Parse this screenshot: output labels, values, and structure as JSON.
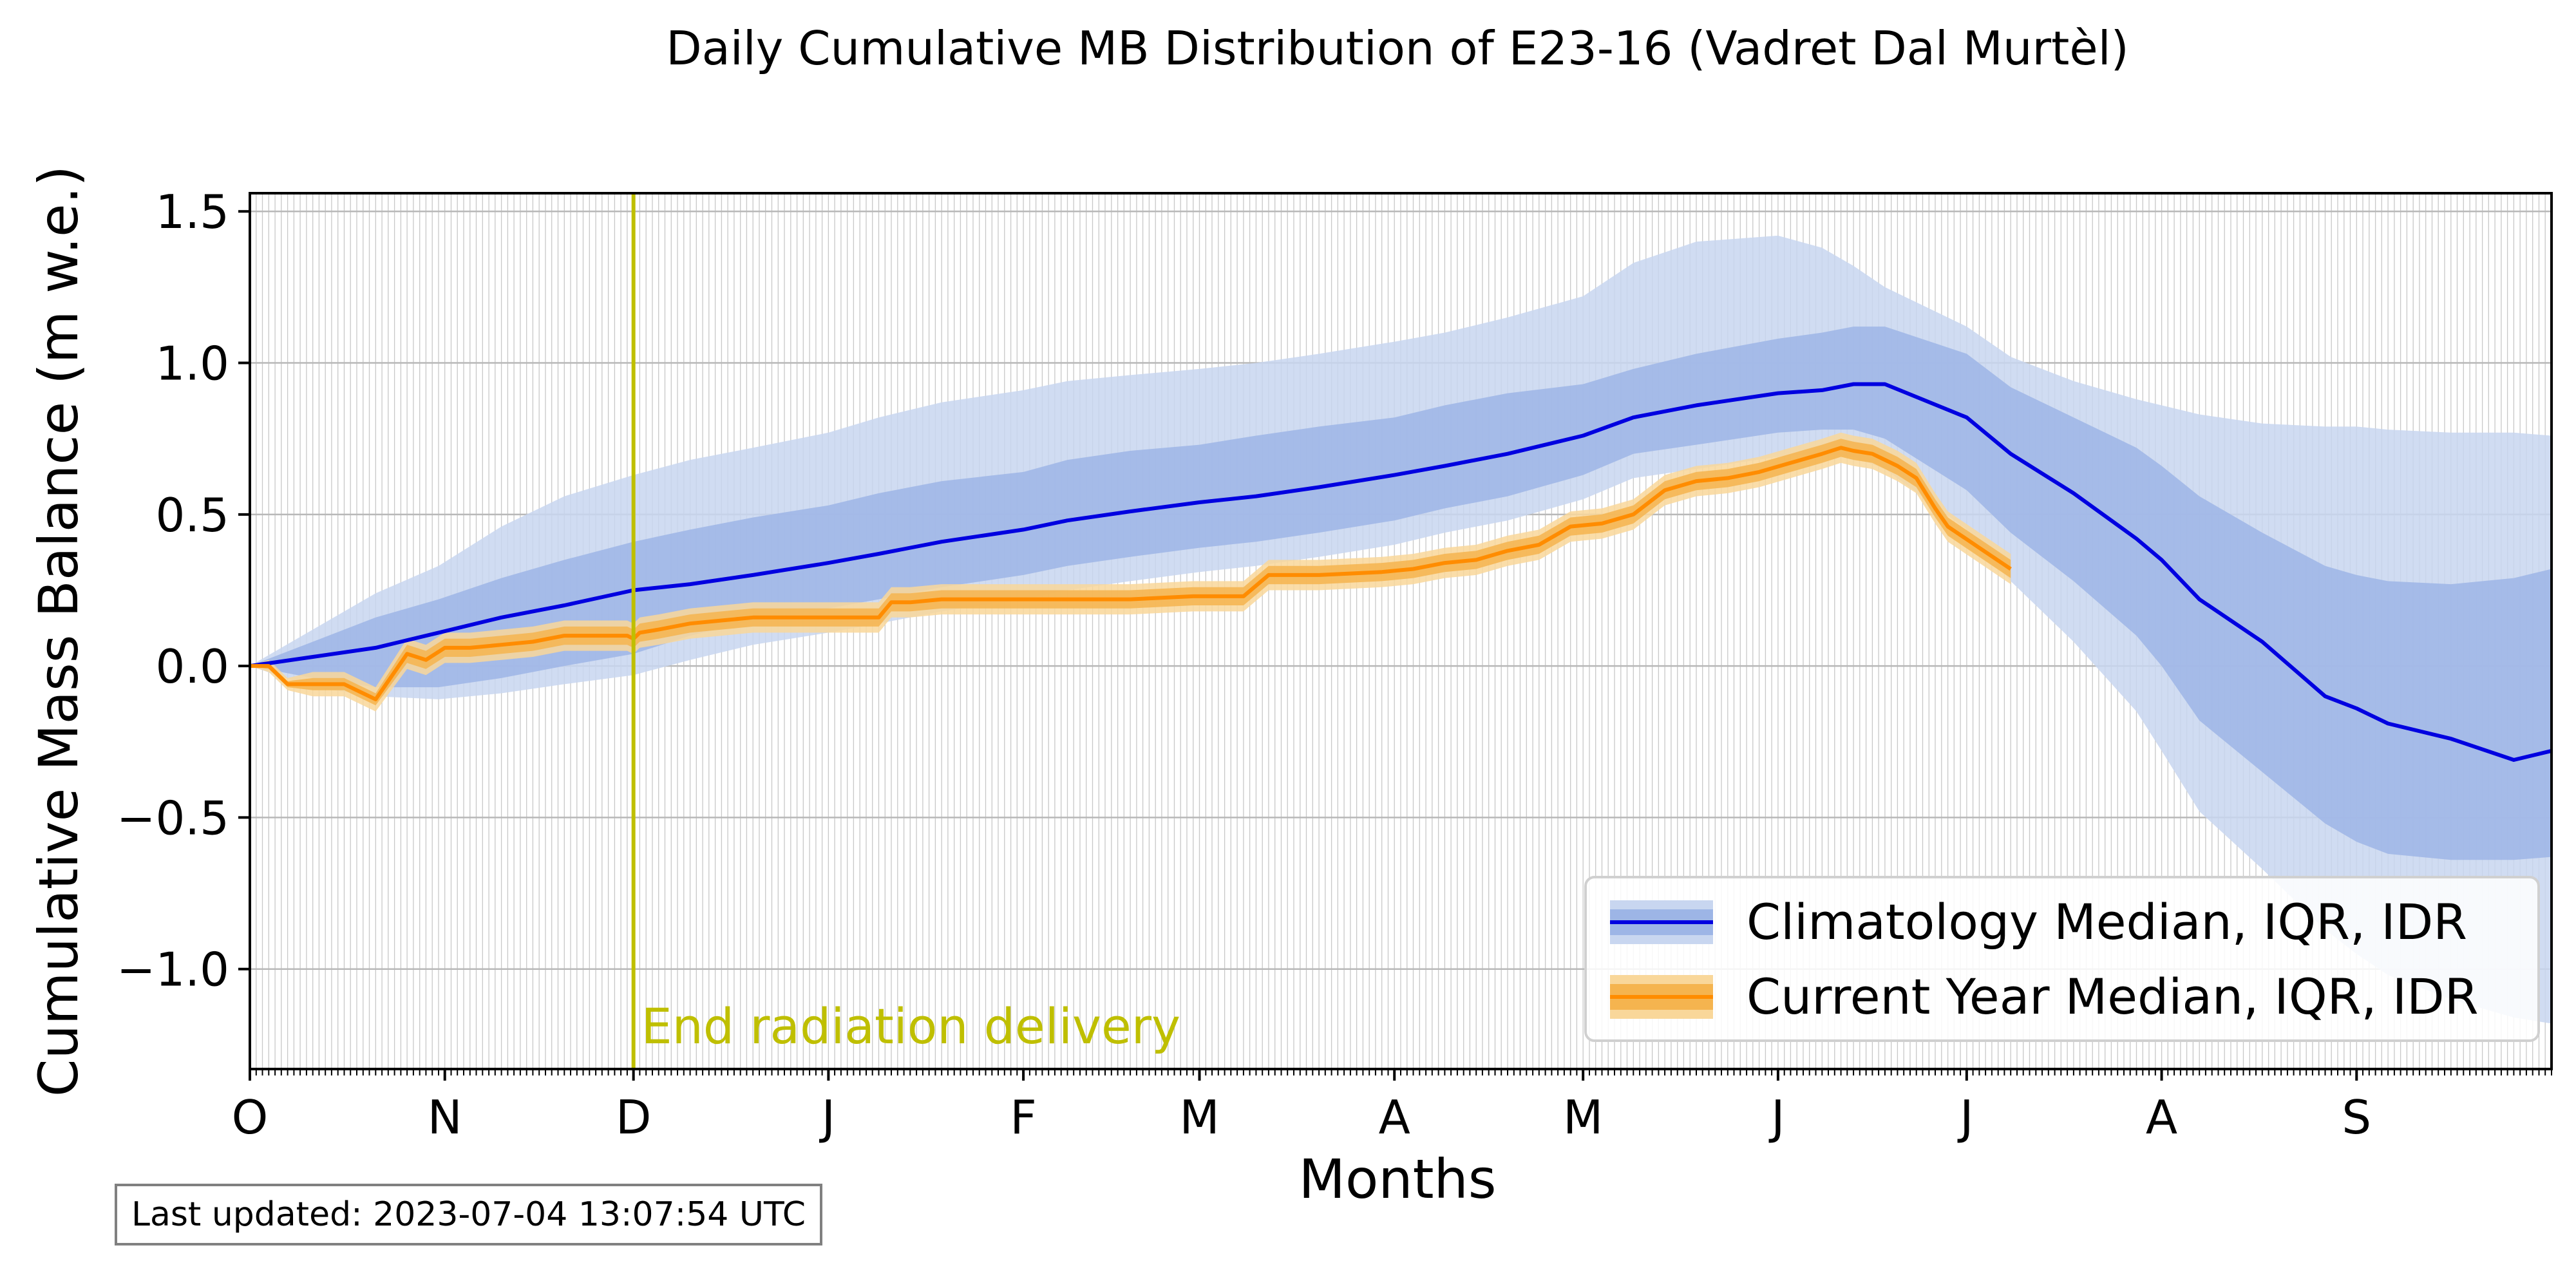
{
  "last_updated": "Last updated: 2023-07-04 13:07:54 UTC",
  "colors": {
    "climatology_line": "#0000e0",
    "climatology_iqr": "#9db5e6",
    "climatology_idr": "#c8d6f0",
    "current_line": "#ff8c00",
    "current_iqr": "#f5b44f",
    "current_idr": "#f9d79a",
    "annotation": "#bfbf00",
    "grid": "#c8c8c8"
  },
  "chart_data": {
    "type": "line",
    "title": "Daily Cumulative MB Distribution of E23-16 (Vadret Dal Murtèl)",
    "xlabel": "Months",
    "ylabel": "Cumulative Mass Balance (m w.e.)",
    "xlim": [
      0,
      366
    ],
    "ylim": [
      -1.33,
      1.56
    ],
    "yticks": [
      -1.0,
      -0.5,
      0.0,
      0.5,
      1.0,
      1.5
    ],
    "ytick_labels": [
      "−1.0",
      "−0.5",
      "0.0",
      "0.5",
      "1.0",
      "1.5"
    ],
    "month_ticks": [
      {
        "day": 0,
        "label": "O"
      },
      {
        "day": 31,
        "label": "N"
      },
      {
        "day": 61,
        "label": "D"
      },
      {
        "day": 92,
        "label": "J"
      },
      {
        "day": 123,
        "label": "F"
      },
      {
        "day": 151,
        "label": "M"
      },
      {
        "day": 182,
        "label": "A"
      },
      {
        "day": 212,
        "label": "M"
      },
      {
        "day": 243,
        "label": "J"
      },
      {
        "day": 273,
        "label": "J"
      },
      {
        "day": 304,
        "label": "A"
      },
      {
        "day": 335,
        "label": "S"
      }
    ],
    "grid": true,
    "legend_position": "lower-right",
    "annotation": {
      "label": "End radiation delivery",
      "day": 61
    },
    "series": [
      {
        "name": "Climatology Median, IQR, IDR",
        "x": [
          0,
          10,
          20,
          30,
          40,
          50,
          61,
          70,
          80,
          92,
          100,
          110,
          123,
          130,
          140,
          151,
          160,
          170,
          182,
          190,
          200,
          212,
          220,
          230,
          243,
          250,
          255,
          260,
          273,
          280,
          290,
          300,
          304,
          310,
          320,
          330,
          335,
          340,
          350,
          360,
          366
        ],
        "median": [
          0.0,
          0.03,
          0.06,
          0.11,
          0.16,
          0.2,
          0.25,
          0.27,
          0.3,
          0.34,
          0.37,
          0.41,
          0.45,
          0.48,
          0.51,
          0.54,
          0.56,
          0.59,
          0.63,
          0.66,
          0.7,
          0.76,
          0.82,
          0.86,
          0.9,
          0.91,
          0.93,
          0.93,
          0.82,
          0.7,
          0.57,
          0.42,
          0.35,
          0.22,
          0.08,
          -0.1,
          -0.14,
          -0.19,
          -0.24,
          -0.31,
          -0.28
        ],
        "iqr_low": [
          0.0,
          -0.04,
          -0.07,
          -0.07,
          -0.04,
          0.0,
          0.04,
          0.1,
          0.15,
          0.19,
          0.22,
          0.26,
          0.3,
          0.33,
          0.36,
          0.39,
          0.41,
          0.44,
          0.48,
          0.52,
          0.56,
          0.63,
          0.7,
          0.73,
          0.77,
          0.78,
          0.78,
          0.75,
          0.58,
          0.44,
          0.28,
          0.1,
          0.0,
          -0.18,
          -0.35,
          -0.52,
          -0.58,
          -0.62,
          -0.64,
          -0.64,
          -0.63
        ],
        "iqr_high": [
          0.0,
          0.08,
          0.16,
          0.22,
          0.29,
          0.35,
          0.41,
          0.45,
          0.49,
          0.53,
          0.57,
          0.61,
          0.64,
          0.68,
          0.71,
          0.73,
          0.76,
          0.79,
          0.82,
          0.86,
          0.9,
          0.93,
          0.98,
          1.03,
          1.08,
          1.1,
          1.12,
          1.12,
          1.03,
          0.92,
          0.82,
          0.72,
          0.66,
          0.56,
          0.44,
          0.33,
          0.3,
          0.28,
          0.27,
          0.29,
          0.32
        ],
        "idr_low": [
          0.0,
          -0.07,
          -0.1,
          -0.11,
          -0.09,
          -0.06,
          -0.03,
          0.02,
          0.07,
          0.11,
          0.14,
          0.18,
          0.22,
          0.25,
          0.28,
          0.31,
          0.33,
          0.36,
          0.4,
          0.44,
          0.48,
          0.55,
          0.62,
          0.65,
          0.69,
          0.7,
          0.69,
          0.65,
          0.45,
          0.28,
          0.08,
          -0.15,
          -0.28,
          -0.48,
          -0.67,
          -0.87,
          -0.95,
          -1.02,
          -1.1,
          -1.16,
          -1.18
        ],
        "idr_high": [
          0.0,
          0.12,
          0.24,
          0.33,
          0.46,
          0.56,
          0.63,
          0.68,
          0.72,
          0.77,
          0.82,
          0.87,
          0.91,
          0.94,
          0.96,
          0.98,
          1.0,
          1.03,
          1.07,
          1.1,
          1.15,
          1.22,
          1.33,
          1.4,
          1.42,
          1.38,
          1.32,
          1.25,
          1.12,
          1.02,
          0.94,
          0.88,
          0.86,
          0.83,
          0.8,
          0.79,
          0.79,
          0.78,
          0.77,
          0.77,
          0.76
        ]
      },
      {
        "name": "Current Year Median, IQR, IDR",
        "x": [
          0,
          3,
          6,
          10,
          15,
          20,
          25,
          28,
          31,
          35,
          40,
          45,
          50,
          55,
          60,
          61,
          62,
          65,
          70,
          75,
          80,
          90,
          100,
          102,
          105,
          110,
          120,
          130,
          140,
          150,
          158,
          162,
          170,
          180,
          185,
          190,
          195,
          200,
          205,
          210,
          215,
          220,
          225,
          230,
          235,
          240,
          245,
          250,
          253,
          255,
          258,
          262,
          265,
          268,
          270,
          275,
          280
        ],
        "median": [
          0.0,
          0.0,
          -0.06,
          -0.06,
          -0.06,
          -0.11,
          0.04,
          0.02,
          0.06,
          0.06,
          0.07,
          0.08,
          0.1,
          0.1,
          0.1,
          0.09,
          0.11,
          0.12,
          0.14,
          0.15,
          0.16,
          0.16,
          0.16,
          0.21,
          0.21,
          0.22,
          0.22,
          0.22,
          0.22,
          0.23,
          0.23,
          0.3,
          0.3,
          0.31,
          0.32,
          0.34,
          0.35,
          0.38,
          0.4,
          0.46,
          0.47,
          0.5,
          0.58,
          0.61,
          0.62,
          0.64,
          0.67,
          0.7,
          0.72,
          0.71,
          0.7,
          0.66,
          0.62,
          0.52,
          0.46,
          0.39,
          0.32
        ],
        "iqr_low": [
          0.0,
          -0.01,
          -0.07,
          -0.08,
          -0.08,
          -0.13,
          0.01,
          -0.01,
          0.03,
          0.03,
          0.04,
          0.05,
          0.07,
          0.07,
          0.07,
          0.06,
          0.08,
          0.09,
          0.11,
          0.12,
          0.13,
          0.13,
          0.13,
          0.18,
          0.18,
          0.19,
          0.19,
          0.19,
          0.19,
          0.2,
          0.2,
          0.27,
          0.27,
          0.28,
          0.29,
          0.31,
          0.32,
          0.35,
          0.37,
          0.43,
          0.44,
          0.47,
          0.55,
          0.58,
          0.59,
          0.61,
          0.64,
          0.67,
          0.69,
          0.68,
          0.67,
          0.63,
          0.59,
          0.49,
          0.43,
          0.36,
          0.29
        ],
        "iqr_high": [
          0.0,
          0.01,
          -0.05,
          -0.04,
          -0.04,
          -0.09,
          0.07,
          0.05,
          0.09,
          0.09,
          0.1,
          0.11,
          0.13,
          0.13,
          0.13,
          0.12,
          0.14,
          0.15,
          0.17,
          0.18,
          0.19,
          0.19,
          0.19,
          0.24,
          0.24,
          0.25,
          0.25,
          0.25,
          0.25,
          0.26,
          0.26,
          0.33,
          0.33,
          0.34,
          0.35,
          0.37,
          0.38,
          0.41,
          0.43,
          0.49,
          0.5,
          0.53,
          0.61,
          0.64,
          0.65,
          0.67,
          0.7,
          0.73,
          0.75,
          0.74,
          0.73,
          0.69,
          0.65,
          0.55,
          0.49,
          0.42,
          0.35
        ],
        "idr_low": [
          0.0,
          -0.02,
          -0.08,
          -0.1,
          -0.1,
          -0.15,
          -0.01,
          -0.03,
          0.01,
          0.01,
          0.02,
          0.03,
          0.05,
          0.05,
          0.05,
          0.04,
          0.06,
          0.07,
          0.09,
          0.1,
          0.11,
          0.11,
          0.11,
          0.16,
          0.16,
          0.17,
          0.17,
          0.17,
          0.17,
          0.18,
          0.18,
          0.25,
          0.25,
          0.26,
          0.27,
          0.29,
          0.3,
          0.33,
          0.35,
          0.41,
          0.42,
          0.45,
          0.53,
          0.56,
          0.57,
          0.59,
          0.62,
          0.65,
          0.67,
          0.66,
          0.65,
          0.61,
          0.57,
          0.47,
          0.41,
          0.34,
          0.27
        ],
        "idr_high": [
          0.0,
          0.02,
          -0.04,
          -0.02,
          -0.02,
          -0.07,
          0.09,
          0.07,
          0.11,
          0.11,
          0.12,
          0.13,
          0.15,
          0.15,
          0.15,
          0.14,
          0.16,
          0.17,
          0.19,
          0.2,
          0.21,
          0.21,
          0.21,
          0.26,
          0.26,
          0.27,
          0.27,
          0.27,
          0.27,
          0.28,
          0.28,
          0.35,
          0.35,
          0.36,
          0.37,
          0.39,
          0.4,
          0.43,
          0.45,
          0.51,
          0.52,
          0.55,
          0.63,
          0.66,
          0.67,
          0.69,
          0.72,
          0.75,
          0.77,
          0.76,
          0.75,
          0.71,
          0.67,
          0.57,
          0.51,
          0.44,
          0.37
        ]
      }
    ]
  }
}
